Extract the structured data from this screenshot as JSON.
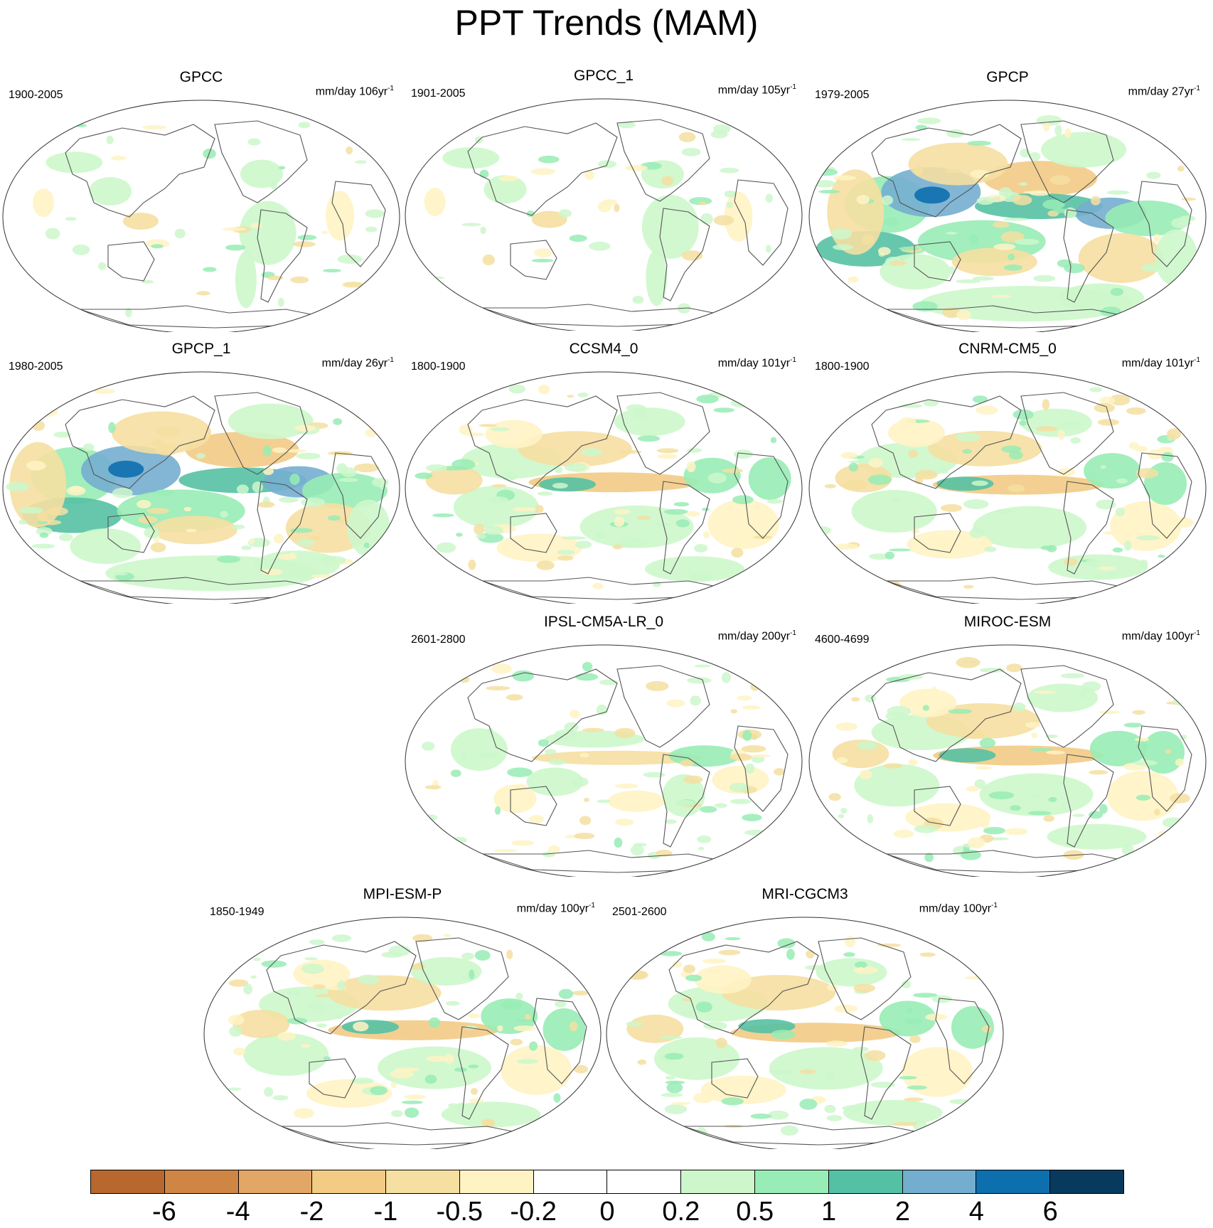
{
  "title": "PPT Trends (MAM)",
  "panels": [
    {
      "title": "GPCC",
      "period": "1900-2005",
      "units": "mm/day 106yr",
      "exp": "-1",
      "style": "sparse"
    },
    {
      "title": "GPCC_1",
      "period": "1901-2005",
      "units": "mm/day 105yr",
      "exp": "-1",
      "style": "sparse"
    },
    {
      "title": "GPCP",
      "period": "1979-2005",
      "units": "mm/day 27yr",
      "exp": "-1",
      "style": "strong"
    },
    {
      "title": "GPCP_1",
      "period": "1980-2005",
      "units": "mm/day 26yr",
      "exp": "-1",
      "style": "strong"
    },
    {
      "title": "CCSM4_0",
      "period": "1800-1900",
      "units": "mm/day 101yr",
      "exp": "-1",
      "style": "model"
    },
    {
      "title": "CNRM-CM5_0",
      "period": "1800-1900",
      "units": "mm/day 101yr",
      "exp": "-1",
      "style": "model"
    },
    {
      "title": "IPSL-CM5A-LR_0",
      "period": "2601-2800",
      "units": "mm/day 200yr",
      "exp": "-1",
      "style": "weak"
    },
    {
      "title": "MIROC-ESM",
      "period": "4600-4699",
      "units": "mm/day 100yr",
      "exp": "-1",
      "style": "model"
    },
    {
      "title": "MPI-ESM-P",
      "period": "1850-1949",
      "units": "mm/day 100yr",
      "exp": "-1",
      "style": "model"
    },
    {
      "title": "MRI-CGCM3",
      "period": "2501-2600",
      "units": "mm/day 100yr",
      "exp": "-1",
      "style": "model"
    }
  ],
  "colorbar": {
    "colors": [
      "#b8682e",
      "#cf8645",
      "#e2a766",
      "#f2cb85",
      "#f5dfa1",
      "#fff3c4",
      "#ffffff",
      "#ffffff",
      "#cdf7cb",
      "#98ecb5",
      "#55c1a4",
      "#74aecf",
      "#0d6fae",
      "#073a5c"
    ],
    "labels": [
      "-6",
      "-4",
      "-2",
      "-1",
      "-0.5",
      "-0.2",
      "0",
      "0.2",
      "0.5",
      "1",
      "2",
      "4",
      "6"
    ]
  }
}
